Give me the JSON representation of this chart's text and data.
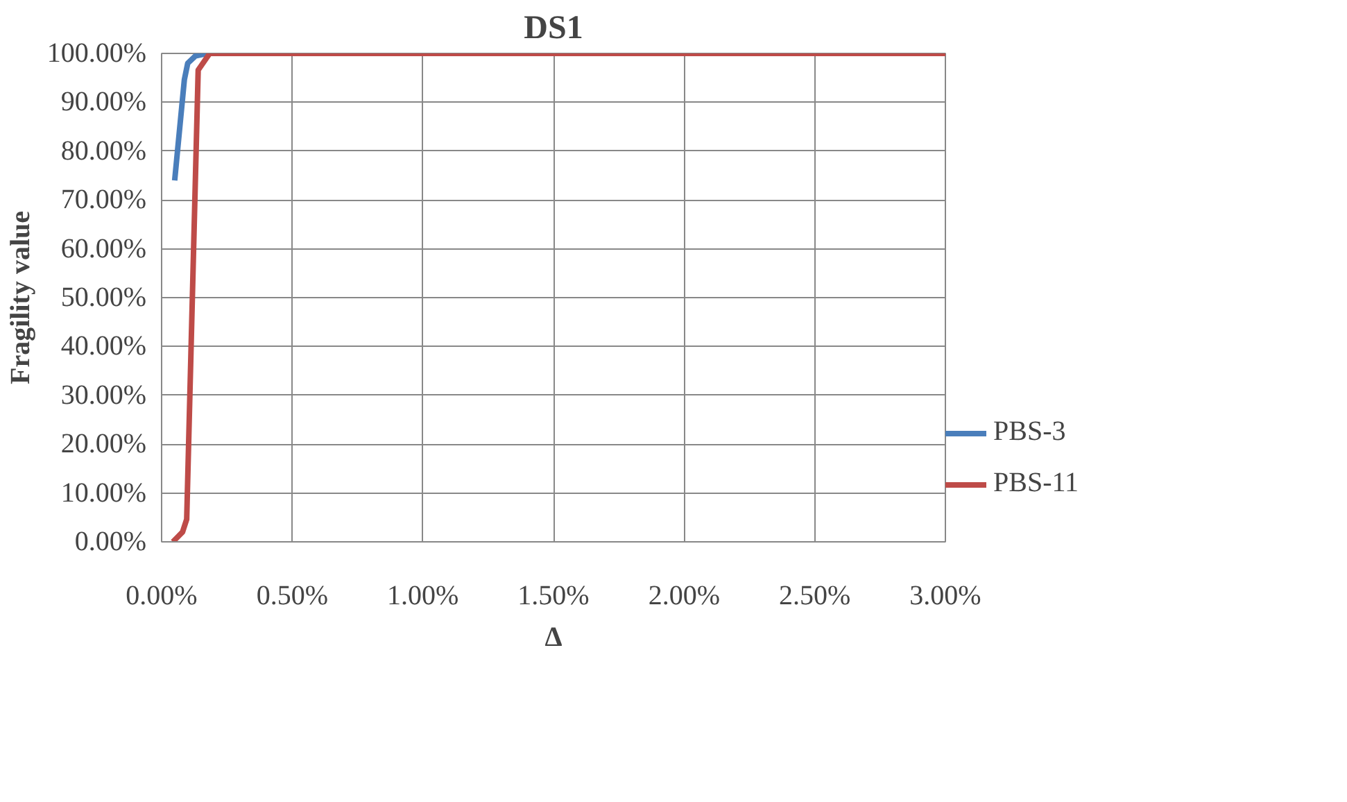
{
  "chart_data": {
    "type": "line",
    "title": "DS1",
    "xlabel": "Δ",
    "ylabel": "Fragility value",
    "xlim": [
      0,
      3
    ],
    "xticks": [
      {
        "value": 0,
        "label": "0.00%"
      },
      {
        "value": 0.5,
        "label": "0.50%"
      },
      {
        "value": 1,
        "label": "1.00%"
      },
      {
        "value": 1.5,
        "label": "1.50%"
      },
      {
        "value": 2,
        "label": "2.00%"
      },
      {
        "value": 2.5,
        "label": "2.50%"
      },
      {
        "value": 3,
        "label": "3.00%"
      }
    ],
    "ylim": [
      0,
      100
    ],
    "yticks": [
      {
        "value": 0,
        "label": "0.00%"
      },
      {
        "value": 10,
        "label": "10.00%"
      },
      {
        "value": 20,
        "label": "20.00%"
      },
      {
        "value": 30,
        "label": "30.00%"
      },
      {
        "value": 40,
        "label": "40.00%"
      },
      {
        "value": 50,
        "label": "50.00%"
      },
      {
        "value": 60,
        "label": "60.00%"
      },
      {
        "value": 70,
        "label": "70.00%"
      },
      {
        "value": 80,
        "label": "80.00%"
      },
      {
        "value": 90,
        "label": "90.00%"
      },
      {
        "value": 100,
        "label": "100.00%"
      }
    ],
    "grid": true,
    "legend": "right",
    "marker": "none",
    "line_style": "solid",
    "series": [
      {
        "name": "PBS-3",
        "color": "#4a7ebb",
        "x": [
          0.05,
          0.087,
          0.1,
          0.13,
          0.175
        ],
        "values": [
          74,
          94.6,
          98,
          99.5,
          100
        ]
      },
      {
        "name": "PBS-11",
        "color": "#be4b48",
        "x": [
          0.043,
          0.08,
          0.096,
          0.14,
          0.184,
          3
        ],
        "values": [
          0,
          2,
          4.6,
          96.6,
          100,
          100
        ]
      }
    ]
  }
}
